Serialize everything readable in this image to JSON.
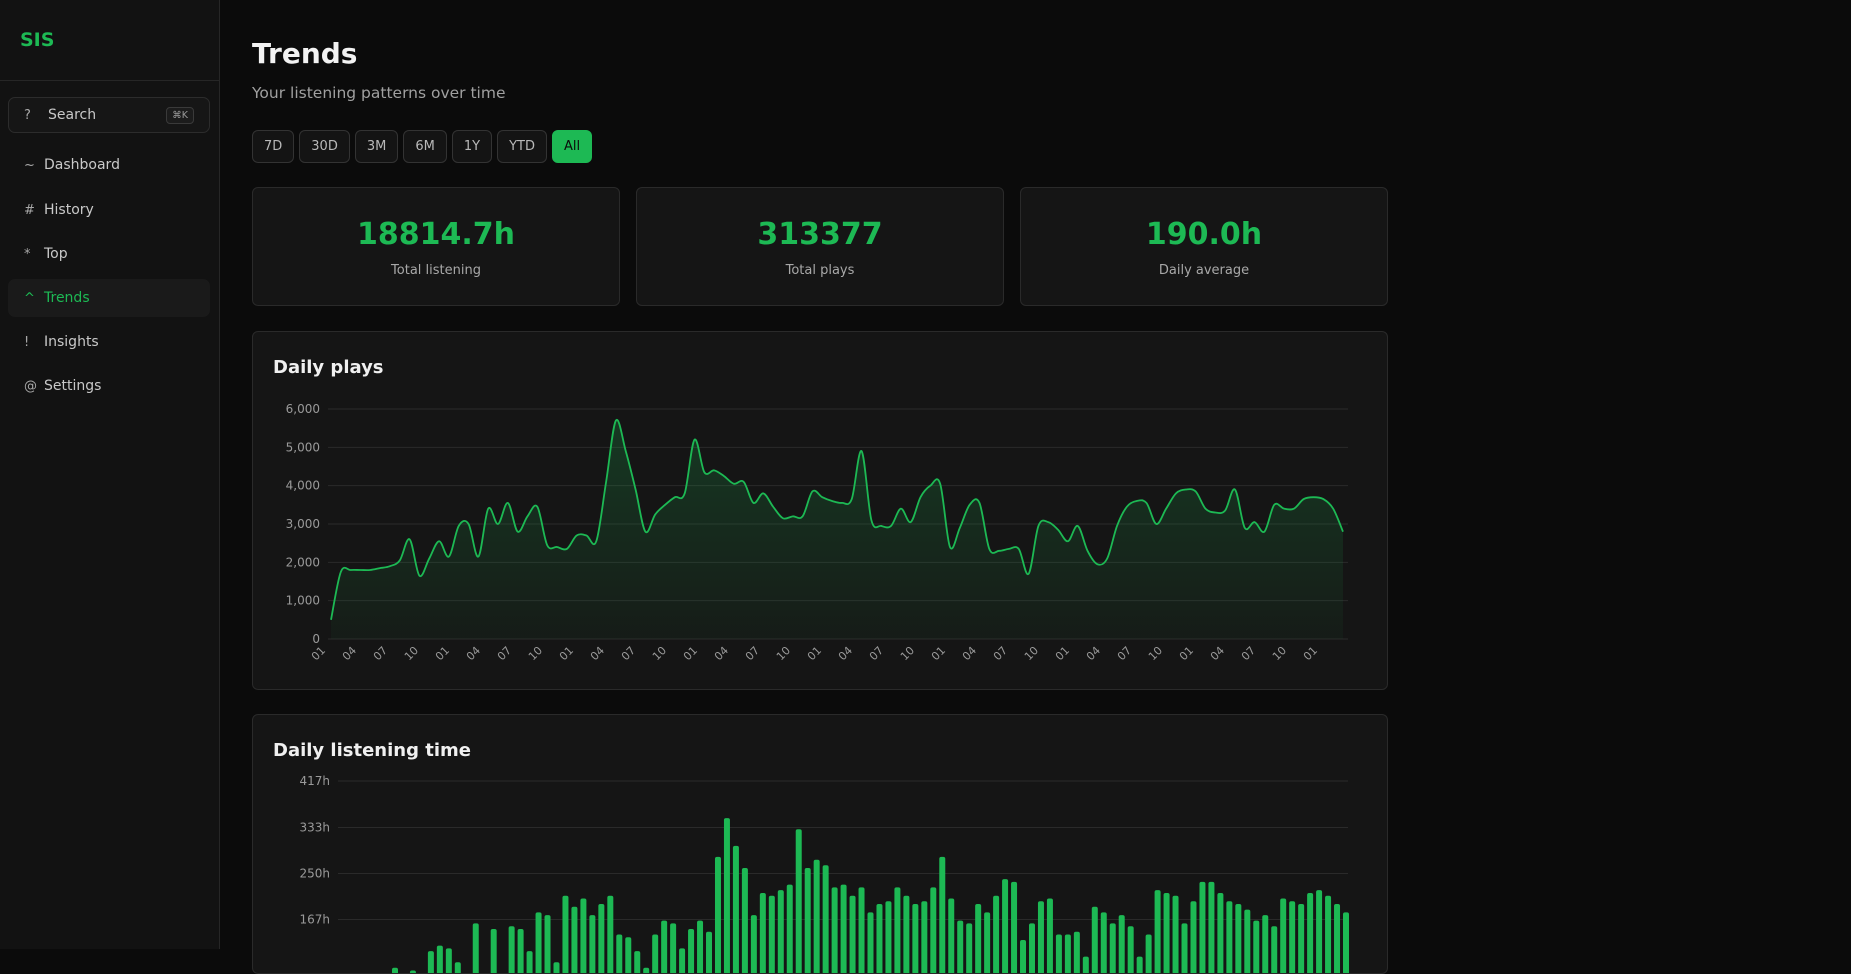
{
  "app": {
    "name": "SIS"
  },
  "search": {
    "label": "Search",
    "shortcut": "⌘K",
    "icon": "?"
  },
  "nav": [
    {
      "sym": "~",
      "label": "Dashboard",
      "active": false
    },
    {
      "sym": "#",
      "label": "History",
      "active": false
    },
    {
      "sym": "*",
      "label": "Top",
      "active": false
    },
    {
      "sym": "^",
      "label": "Trends",
      "active": true
    },
    {
      "sym": "!",
      "label": "Insights",
      "active": false
    },
    {
      "sym": "@",
      "label": "Settings",
      "active": false
    }
  ],
  "page": {
    "title": "Trends",
    "subtitle": "Your listening patterns over time"
  },
  "ranges": [
    "7D",
    "30D",
    "3M",
    "6M",
    "1Y",
    "YTD",
    "All"
  ],
  "active_range": "All",
  "stats": [
    {
      "value": "18814.7h",
      "label": "Total listening"
    },
    {
      "value": "313377",
      "label": "Total plays"
    },
    {
      "value": "190.0h",
      "label": "Daily average"
    }
  ],
  "colors": {
    "accent": "#1db954",
    "background": "#0b0b0b",
    "panel": "#151515"
  },
  "chart_data": [
    {
      "type": "area",
      "title": "Daily plays",
      "ylim": [
        0,
        6000
      ],
      "y_ticks": [
        "0",
        "1,000",
        "2,000",
        "3,000",
        "4,000",
        "5,000",
        "6,000"
      ],
      "x_ticks": [
        "01",
        "04",
        "07",
        "10",
        "01",
        "04",
        "07",
        "10",
        "01",
        "04",
        "07",
        "10",
        "01",
        "04",
        "07",
        "10",
        "01",
        "04",
        "07",
        "10",
        "01",
        "04",
        "07",
        "10",
        "01",
        "04",
        "07",
        "10",
        "01",
        "04",
        "07",
        "10",
        "01"
      ],
      "grid": true,
      "values": [
        500,
        1750,
        1800,
        1800,
        1800,
        1850,
        1900,
        2050,
        2600,
        1650,
        2100,
        2550,
        2150,
        2950,
        3000,
        2150,
        3400,
        3000,
        3550,
        2800,
        3200,
        3450,
        2450,
        2400,
        2350,
        2700,
        2700,
        2550,
        4100,
        5700,
        4900,
        3900,
        2800,
        3250,
        3500,
        3700,
        3800,
        5200,
        4350,
        4400,
        4250,
        4050,
        4100,
        3550,
        3800,
        3450,
        3150,
        3200,
        3200,
        3850,
        3700,
        3600,
        3550,
        3650,
        4900,
        3100,
        2950,
        2950,
        3400,
        3050,
        3700,
        4000,
        4050,
        2400,
        2900,
        3500,
        3550,
        2350,
        2300,
        2350,
        2350,
        1700,
        2950,
        3050,
        2850,
        2550,
        2950,
        2300,
        1950,
        2100,
        2950,
        3450,
        3600,
        3550,
        3000,
        3400,
        3800,
        3900,
        3850,
        3400,
        3300,
        3350,
        3900,
        2900,
        3050,
        2800,
        3500,
        3400,
        3400,
        3650,
        3700,
        3650,
        3400,
        2800
      ]
    },
    {
      "type": "bar",
      "title": "Daily listening time",
      "ylim": [
        0,
        417
      ],
      "y_ticks": [
        "167h",
        "250h",
        "333h",
        "417h"
      ],
      "grid": true,
      "values": [
        80,
        60,
        75,
        70,
        110,
        120,
        115,
        90,
        60,
        160,
        70,
        150,
        70,
        155,
        150,
        110,
        180,
        175,
        90,
        210,
        190,
        205,
        175,
        195,
        210,
        140,
        135,
        110,
        80,
        140,
        165,
        160,
        115,
        150,
        165,
        145,
        280,
        350,
        300,
        260,
        175,
        215,
        210,
        220,
        230,
        330,
        260,
        275,
        265,
        225,
        230,
        210,
        225,
        180,
        195,
        200,
        225,
        210,
        195,
        200,
        225,
        280,
        205,
        165,
        160,
        195,
        180,
        210,
        240,
        235,
        130,
        160,
        200,
        205,
        140,
        140,
        145,
        100,
        190,
        180,
        160,
        175,
        155,
        100,
        140,
        220,
        215,
        210,
        160,
        200,
        235,
        235,
        215,
        200,
        195,
        185,
        165,
        175,
        155,
        205,
        200,
        195,
        215,
        220,
        210,
        195,
        180
      ]
    }
  ]
}
